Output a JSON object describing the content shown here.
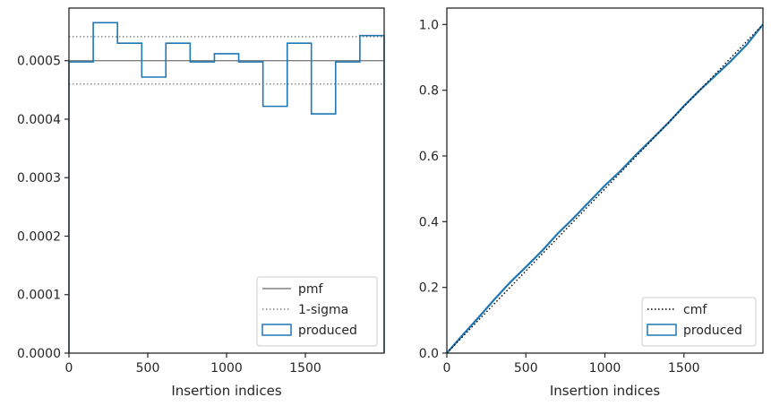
{
  "chart_data": [
    {
      "type": "histogram",
      "xlabel": "Insertion indices",
      "ylabel": "",
      "xlim": [
        0,
        2000
      ],
      "ylim": [
        0,
        0.00059
      ],
      "xticks": [
        0,
        500,
        1000,
        1500
      ],
      "xtick_labels": [
        "0",
        "500",
        "1000",
        "1500"
      ],
      "yticks": [
        0,
        0.0001,
        0.0002,
        0.0003,
        0.0004,
        0.0005
      ],
      "ytick_labels": [
        "0.0000",
        "0.0001",
        "0.0002",
        "0.0003",
        "0.0004",
        "0.0005"
      ],
      "pmf": 0.0005,
      "sigma_band": [
        0.00046,
        0.000541
      ],
      "histogram": {
        "bin_edges": [
          0,
          154,
          308,
          462,
          615,
          769,
          923,
          1077,
          1231,
          1385,
          1538,
          1692,
          1846,
          2000
        ],
        "values": [
          0.000498,
          0.000565,
          0.00053,
          0.000472,
          0.00053,
          0.000498,
          0.000512,
          0.000498,
          0.000422,
          0.00053,
          0.000409,
          0.000498,
          0.000543
        ]
      },
      "legend": {
        "placement": "lower-right",
        "entries": [
          {
            "label": "pmf",
            "style": "solid",
            "color": "#808080"
          },
          {
            "label": "1-sigma",
            "style": "dotted",
            "color": "#808080"
          },
          {
            "label": "produced",
            "style": "box",
            "color": "#1f77b4"
          }
        ]
      },
      "grid": false
    },
    {
      "type": "line",
      "xlabel": "Insertion indices",
      "ylabel": "",
      "xlim": [
        0,
        2000
      ],
      "ylim": [
        0,
        1.05
      ],
      "xticks": [
        0,
        500,
        1000,
        1500
      ],
      "xtick_labels": [
        "0",
        "500",
        "1000",
        "1500"
      ],
      "yticks": [
        0,
        0.2,
        0.4,
        0.6,
        0.8,
        1.0
      ],
      "ytick_labels": [
        "0.0",
        "0.2",
        "0.4",
        "0.6",
        "0.8",
        "1.0"
      ],
      "cmf": {
        "x": [
          0,
          2000
        ],
        "y": [
          0,
          1.0
        ]
      },
      "produced": {
        "x": [
          0,
          100,
          200,
          300,
          400,
          500,
          600,
          700,
          800,
          900,
          1000,
          1100,
          1200,
          1300,
          1400,
          1500,
          1600,
          1700,
          1800,
          1900,
          2000
        ],
        "y": [
          0,
          0.055,
          0.108,
          0.163,
          0.215,
          0.262,
          0.31,
          0.363,
          0.41,
          0.46,
          0.51,
          0.555,
          0.605,
          0.652,
          0.7,
          0.752,
          0.8,
          0.845,
          0.89,
          0.94,
          1.0
        ]
      },
      "legend": {
        "placement": "lower-right",
        "entries": [
          {
            "label": "cmf",
            "style": "dotted",
            "color": "#000000"
          },
          {
            "label": "produced",
            "style": "box",
            "color": "#1f77b4"
          }
        ]
      },
      "grid": false
    }
  ]
}
